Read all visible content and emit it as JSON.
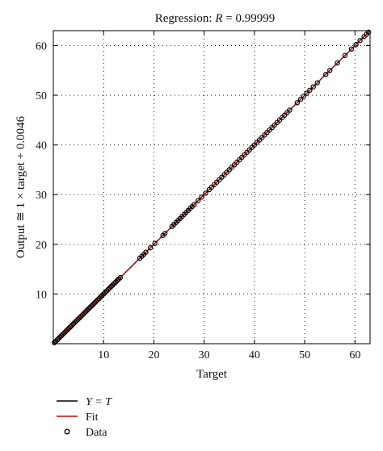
{
  "chart_data": {
    "type": "scatter",
    "title": "Regression: R = 0.99999",
    "title_prefix": "Regression: ",
    "title_symbol": "R",
    "title_suffix": " = 0.99999",
    "xlabel": "Target",
    "ylabel": "Output ≅ 1 × target + 0.0046",
    "xlim": [
      0,
      63
    ],
    "ylim": [
      0,
      63
    ],
    "xticks": [
      10,
      20,
      30,
      40,
      50,
      60
    ],
    "yticks": [
      10,
      20,
      30,
      40,
      50,
      60
    ],
    "grid": true,
    "legend_position": "below plot, left",
    "legend": [
      {
        "key": "identity",
        "label": "Y = T",
        "symbol": "line",
        "color": "#000000"
      },
      {
        "key": "fit",
        "label": "Fit",
        "symbol": "line",
        "color": "#cc0000"
      },
      {
        "key": "data",
        "label": "Data",
        "symbol": "circle",
        "color": "#000000"
      }
    ],
    "identity_line": {
      "slope": 1,
      "intercept": 0
    },
    "fit_line": {
      "slope": 1,
      "intercept": 0.0046
    },
    "series": [
      {
        "name": "Data",
        "x": [
          0.2,
          0.5,
          0.8,
          1.0,
          1.3,
          1.6,
          1.9,
          2.2,
          2.5,
          2.8,
          3.1,
          3.4,
          3.7,
          4.0,
          4.3,
          4.6,
          4.9,
          5.2,
          5.5,
          5.8,
          6.1,
          6.4,
          6.7,
          7.0,
          7.3,
          7.6,
          7.9,
          8.2,
          8.5,
          8.8,
          9.1,
          9.4,
          9.7,
          10.0,
          10.3,
          10.6,
          10.9,
          11.2,
          11.5,
          11.8,
          12.1,
          12.4,
          12.7,
          13.0,
          13.3,
          17.2,
          17.6,
          18.0,
          18.4,
          19.3,
          20.2,
          21.8,
          22.2,
          23.6,
          24.0,
          24.4,
          24.8,
          25.2,
          25.6,
          26.0,
          26.4,
          26.8,
          27.2,
          27.6,
          28.0,
          28.8,
          29.5,
          30.3,
          31.0,
          31.5,
          32.0,
          32.5,
          33.0,
          33.5,
          34.0,
          34.5,
          35.0,
          35.5,
          36.0,
          36.5,
          37.0,
          37.5,
          38.0,
          38.5,
          39.0,
          39.5,
          40.0,
          40.5,
          41.0,
          41.5,
          42.0,
          42.5,
          43.0,
          43.5,
          44.0,
          44.5,
          45.0,
          45.5,
          46.0,
          46.5,
          47.0,
          48.5,
          49.2,
          49.8,
          50.4,
          51.0,
          51.7,
          52.5,
          54.2,
          55.0,
          56.5,
          58.0,
          59.3,
          60.2,
          61.0,
          61.8,
          62.3,
          62.7
        ],
        "y": [
          0.2,
          0.5,
          0.8,
          1.0,
          1.3,
          1.6,
          1.9,
          2.2,
          2.5,
          2.8,
          3.1,
          3.4,
          3.7,
          4.0,
          4.3,
          4.6,
          4.9,
          5.2,
          5.5,
          5.8,
          6.1,
          6.4,
          6.7,
          7.0,
          7.3,
          7.6,
          7.9,
          8.2,
          8.5,
          8.8,
          9.1,
          9.4,
          9.7,
          10.0,
          10.3,
          10.6,
          10.9,
          11.2,
          11.5,
          11.8,
          12.1,
          12.4,
          12.7,
          13.0,
          13.3,
          17.2,
          17.6,
          18.0,
          18.4,
          19.3,
          20.2,
          21.8,
          22.2,
          23.6,
          24.0,
          24.4,
          24.8,
          25.2,
          25.6,
          26.0,
          26.4,
          26.8,
          27.2,
          27.6,
          28.0,
          28.8,
          29.5,
          30.3,
          31.0,
          31.5,
          32.0,
          32.5,
          33.0,
          33.5,
          34.0,
          34.5,
          35.0,
          35.5,
          36.0,
          36.5,
          37.0,
          37.5,
          38.0,
          38.5,
          39.0,
          39.5,
          40.0,
          40.5,
          41.0,
          41.5,
          42.0,
          42.5,
          43.0,
          43.5,
          44.0,
          44.5,
          45.0,
          45.5,
          46.0,
          46.5,
          47.0,
          48.5,
          49.2,
          49.8,
          50.4,
          51.0,
          51.7,
          52.5,
          54.2,
          55.0,
          56.5,
          58.0,
          59.3,
          60.2,
          61.0,
          61.8,
          62.3,
          62.7
        ]
      }
    ]
  }
}
